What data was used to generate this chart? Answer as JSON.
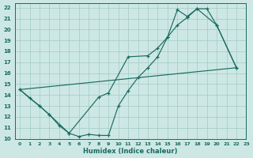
{
  "xlabel": "Humidex (Indice chaleur)",
  "ylabel": "",
  "bg_color": "#cde8e4",
  "grid_color": "#a8cec9",
  "line_color": "#1a6b60",
  "xlim": [
    -0.5,
    23
  ],
  "ylim": [
    10,
    22.4
  ],
  "xticks": [
    0,
    1,
    2,
    3,
    4,
    5,
    6,
    7,
    8,
    9,
    10,
    11,
    12,
    13,
    14,
    15,
    16,
    17,
    18,
    19,
    20,
    21,
    22,
    23
  ],
  "yticks": [
    10,
    11,
    12,
    13,
    14,
    15,
    16,
    17,
    18,
    19,
    20,
    21,
    22
  ],
  "line1_x": [
    0,
    1,
    2,
    3,
    4,
    5,
    6,
    7,
    8,
    9,
    10,
    11,
    12,
    13,
    14,
    15,
    16,
    17,
    18,
    19,
    20,
    22
  ],
  "line1_y": [
    14.5,
    13.7,
    13.0,
    12.2,
    11.2,
    10.5,
    10.2,
    10.4,
    10.3,
    10.3,
    13.0,
    14.4,
    15.6,
    16.5,
    17.5,
    19.3,
    20.4,
    21.1,
    21.9,
    21.9,
    20.4,
    16.5
  ],
  "line2_x": [
    0,
    2,
    3,
    5,
    8,
    9,
    11,
    13,
    14,
    15,
    16,
    17,
    18,
    20,
    22
  ],
  "line2_y": [
    14.5,
    13.0,
    12.2,
    10.5,
    13.8,
    14.2,
    17.5,
    17.6,
    18.3,
    19.3,
    21.8,
    21.2,
    21.9,
    20.4,
    16.5
  ],
  "line3_x": [
    0,
    22
  ],
  "line3_y": [
    14.5,
    16.5
  ]
}
